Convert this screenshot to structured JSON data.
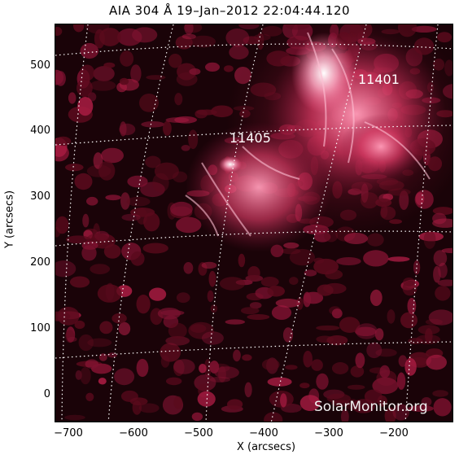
{
  "title": "AIA 304 Å 19–Jan–2012 22:04:44.120",
  "axes": {
    "xlabel": "X (arcsecs)",
    "ylabel": "Y (arcsecs)",
    "x_ticks": [
      "−700",
      "−600",
      "−500",
      "−400",
      "−300",
      "−200"
    ],
    "y_ticks": [
      "500",
      "400",
      "300",
      "200",
      "100",
      "0"
    ]
  },
  "active_regions": {
    "ar1": "11401",
    "ar2": "11405"
  },
  "watermark": "SolarMonitor.org",
  "colors": {
    "background": "#1a0308",
    "emission_dark": "#5a0a1c",
    "emission_mid": "#a81c42",
    "emission_bright": "#ff9cb8",
    "grid": "#ffffff"
  }
}
